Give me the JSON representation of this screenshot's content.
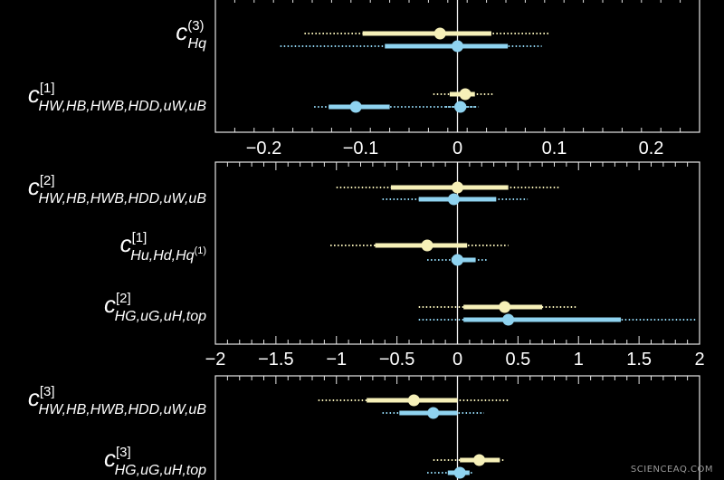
{
  "chart_data": [
    {
      "type": "forest",
      "xlim": [
        -0.25,
        0.25
      ],
      "ticks": [
        -0.2,
        -0.1,
        0,
        0.1,
        0.2
      ],
      "tick_labels": [
        "−0.2",
        "−0.1",
        "0",
        "0.1",
        "0.2"
      ],
      "rows": [
        {
          "label": {
            "base": "c",
            "sup": "(3)",
            "sub": "Hq"
          },
          "estimates": [
            {
              "color": "#f6f0b8",
              "center": -0.018,
              "inner": [
                -0.098,
                0.035
              ],
              "outer": [
                -0.158,
                0.095
              ]
            },
            {
              "color": "#8fd3f0",
              "center": 0.0,
              "inner": [
                -0.075,
                0.052
              ],
              "outer": [
                -0.183,
                0.087
              ]
            }
          ]
        },
        {
          "label": {
            "base": "c",
            "sup": "[1]",
            "sub": "HW,HB,HWB,HDD,uW,uB"
          },
          "estimates": [
            {
              "color": "#f6f0b8",
              "center": 0.008,
              "inner": [
                -0.008,
                0.018
              ],
              "outer": [
                -0.025,
                0.038
              ]
            },
            {
              "color": "#8fd3f0",
              "center": -0.105,
              "inner": [
                -0.133,
                -0.07
              ],
              "outer": [
                -0.148,
                0.018
              ]
            },
            {
              "color": "#8fd3f0",
              "center": 0.003,
              "inner": [
                -0.003,
                0.009
              ],
              "outer": [
                -0.012,
                0.022
              ]
            }
          ]
        }
      ]
    },
    {
      "type": "forest",
      "xlim": [
        -2,
        2
      ],
      "ticks": [
        -2,
        -1.5,
        -1,
        -0.5,
        0,
        0.5,
        1,
        1.5,
        2
      ],
      "tick_labels": [
        "−2",
        "−1.5",
        "−1",
        "−0.5",
        "0",
        "0.5",
        "1",
        "1.5",
        "2"
      ],
      "rows": [
        {
          "label": {
            "base": "c",
            "sup": "[2]",
            "sub": "HW,HB,HWB,HDD,uW,uB"
          },
          "estimates": [
            {
              "color": "#f6f0b8",
              "center": 0.0,
              "inner": [
                -0.55,
                0.42
              ],
              "outer": [
                -1.0,
                0.85
              ]
            },
            {
              "color": "#8fd3f0",
              "center": -0.03,
              "inner": [
                -0.32,
                0.32
              ],
              "outer": [
                -0.62,
                0.58
              ]
            }
          ]
        },
        {
          "label": {
            "base": "c",
            "sup": "[1]",
            "sub": "Hu,Hd,Hq",
            "sub_sup": "(1)"
          },
          "estimates": [
            {
              "color": "#f6f0b8",
              "center": -0.25,
              "inner": [
                -0.68,
                0.08
              ],
              "outer": [
                -1.05,
                0.42
              ]
            },
            {
              "color": "#8fd3f0",
              "center": 0.0,
              "inner": [
                -0.05,
                0.15
              ],
              "outer": [
                -0.25,
                0.25
              ]
            }
          ]
        },
        {
          "label": {
            "base": "c",
            "sup": "[2]",
            "sub": "HG,uG,uH,top"
          },
          "estimates": [
            {
              "color": "#f6f0b8",
              "center": 0.39,
              "inner": [
                0.05,
                0.7
              ],
              "outer": [
                -0.32,
                0.98
              ]
            },
            {
              "color": "#8fd3f0",
              "center": 0.42,
              "inner": [
                0.05,
                1.35
              ],
              "outer": [
                -0.32,
                1.98
              ]
            }
          ]
        }
      ]
    },
    {
      "type": "forest",
      "xlim": [
        -2,
        2
      ],
      "ticks": [
        -2,
        -1.5,
        -1,
        -0.5,
        0,
        0.5,
        1,
        1.5,
        2
      ],
      "tick_labels": [],
      "rows": [
        {
          "label": {
            "base": "c",
            "sup": "[3]",
            "sub": "HW,HB,HWB,HDD,uW,uB"
          },
          "estimates": [
            {
              "color": "#f6f0b8",
              "center": -0.36,
              "inner": [
                -0.75,
                0.0
              ],
              "outer": [
                -1.15,
                0.42
              ]
            },
            {
              "color": "#8fd3f0",
              "center": -0.2,
              "inner": [
                -0.48,
                0.0
              ],
              "outer": [
                -0.62,
                0.22
              ]
            }
          ]
        },
        {
          "label": {
            "base": "c",
            "sup": "[3]",
            "sub": "HG,uG,uH,top"
          },
          "estimates": [
            {
              "color": "#f6f0b8",
              "center": 0.18,
              "inner": [
                0.02,
                0.35
              ],
              "outer": [
                -0.2,
                0.38
              ]
            },
            {
              "color": "#8fd3f0",
              "center": 0.02,
              "inner": [
                -0.08,
                0.1
              ],
              "outer": [
                -0.25,
                0.12
              ]
            }
          ]
        }
      ]
    }
  ],
  "watermark": "SCIENCEAQ.COM"
}
